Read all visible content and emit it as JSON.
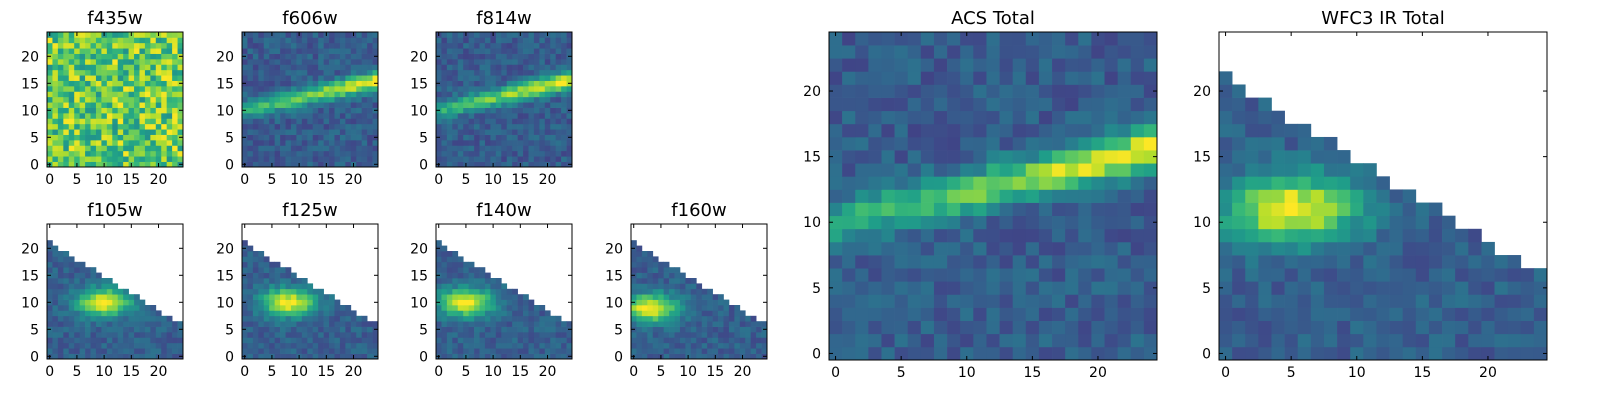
{
  "chart_data": [
    {
      "type": "heatmap",
      "title": "f435w",
      "xticks": [
        0,
        5,
        10,
        15,
        20
      ],
      "yticks": [
        0,
        5,
        10,
        15,
        20
      ],
      "xlim": [
        -0.5,
        24.5
      ],
      "ylim": [
        -0.5,
        24.5
      ],
      "grid_size": [
        25,
        25
      ],
      "colormap": "viridis",
      "pattern": "noise-high",
      "masked": false
    },
    {
      "type": "heatmap",
      "title": "f606w",
      "xticks": [
        0,
        5,
        10,
        15,
        20
      ],
      "yticks": [
        0,
        5,
        10,
        15,
        20
      ],
      "xlim": [
        -0.5,
        24.5
      ],
      "ylim": [
        -0.5,
        24.5
      ],
      "grid_size": [
        25,
        25
      ],
      "colormap": "viridis",
      "pattern": "streak-rising",
      "masked": false
    },
    {
      "type": "heatmap",
      "title": "f814w",
      "xticks": [
        0,
        5,
        10,
        15,
        20
      ],
      "yticks": [
        0,
        5,
        10,
        15,
        20
      ],
      "xlim": [
        -0.5,
        24.5
      ],
      "ylim": [
        -0.5,
        24.5
      ],
      "grid_size": [
        25,
        25
      ],
      "colormap": "viridis",
      "pattern": "streak-rising",
      "masked": false
    },
    {
      "type": "heatmap",
      "title": "f105w",
      "xticks": [
        0,
        5,
        10,
        15,
        20
      ],
      "yticks": [
        0,
        5,
        10,
        15,
        20
      ],
      "xlim": [
        -0.5,
        24.5
      ],
      "ylim": [
        -0.5,
        24.5
      ],
      "grid_size": [
        25,
        25
      ],
      "colormap": "viridis",
      "pattern": "blob",
      "blob_center": [
        10,
        10
      ],
      "masked": true
    },
    {
      "type": "heatmap",
      "title": "f125w",
      "xticks": [
        0,
        5,
        10,
        15,
        20
      ],
      "yticks": [
        0,
        5,
        10,
        15,
        20
      ],
      "xlim": [
        -0.5,
        24.5
      ],
      "ylim": [
        -0.5,
        24.5
      ],
      "grid_size": [
        25,
        25
      ],
      "colormap": "viridis",
      "pattern": "blob",
      "blob_center": [
        8,
        10
      ],
      "masked": true
    },
    {
      "type": "heatmap",
      "title": "f140w",
      "xticks": [
        0,
        5,
        10,
        15,
        20
      ],
      "yticks": [
        0,
        5,
        10,
        15,
        20
      ],
      "xlim": [
        -0.5,
        24.5
      ],
      "ylim": [
        -0.5,
        24.5
      ],
      "grid_size": [
        25,
        25
      ],
      "colormap": "viridis",
      "pattern": "blob",
      "blob_center": [
        5,
        10
      ],
      "masked": true
    },
    {
      "type": "heatmap",
      "title": "f160w",
      "xticks": [
        0,
        5,
        10,
        15,
        20
      ],
      "yticks": [
        0,
        5,
        10,
        15,
        20
      ],
      "xlim": [
        -0.5,
        24.5
      ],
      "ylim": [
        -0.5,
        24.5
      ],
      "grid_size": [
        25,
        25
      ],
      "colormap": "viridis",
      "pattern": "blob",
      "blob_center": [
        3,
        9
      ],
      "masked": true
    },
    {
      "type": "heatmap",
      "title": "ACS Total",
      "xticks": [
        0,
        5,
        10,
        15,
        20
      ],
      "yticks": [
        0,
        5,
        10,
        15,
        20
      ],
      "xlim": [
        -0.5,
        24.5
      ],
      "ylim": [
        -0.5,
        24.5
      ],
      "grid_size": [
        25,
        25
      ],
      "colormap": "viridis",
      "pattern": "streak-rising",
      "masked": false
    },
    {
      "type": "heatmap",
      "title": "WFC3 IR Total",
      "xticks": [
        0,
        5,
        10,
        15,
        20
      ],
      "yticks": [
        0,
        5,
        10,
        15,
        20
      ],
      "xlim": [
        -0.5,
        24.5
      ],
      "ylim": [
        -0.5,
        24.5
      ],
      "grid_size": [
        25,
        25
      ],
      "colormap": "viridis",
      "pattern": "blob",
      "blob_center": [
        5,
        11
      ],
      "masked": true
    }
  ]
}
